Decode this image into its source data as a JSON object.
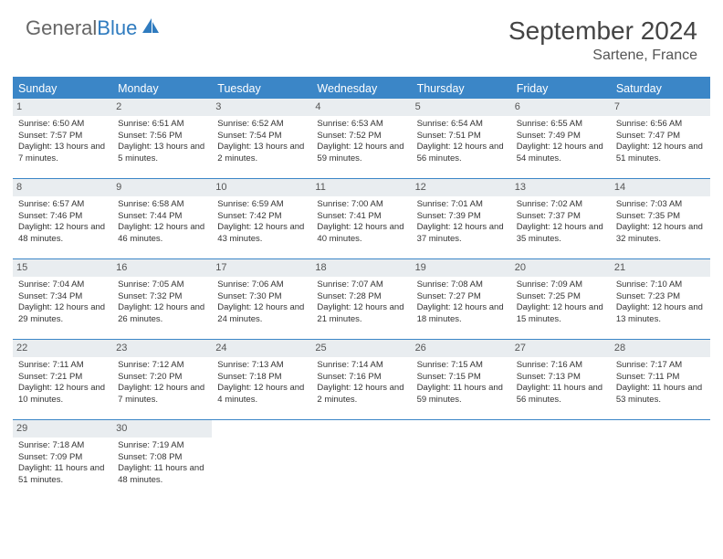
{
  "brand": {
    "part1": "General",
    "part2": "Blue"
  },
  "title": "September 2024",
  "location": "Sartene, France",
  "weekday_bg": "#3b86c7",
  "daynum_bg": "#e9edf0",
  "weekdays": [
    "Sunday",
    "Monday",
    "Tuesday",
    "Wednesday",
    "Thursday",
    "Friday",
    "Saturday"
  ],
  "weeks": [
    [
      {
        "n": "1",
        "sr": "Sunrise: 6:50 AM",
        "ss": "Sunset: 7:57 PM",
        "dl": "Daylight: 13 hours and 7 minutes."
      },
      {
        "n": "2",
        "sr": "Sunrise: 6:51 AM",
        "ss": "Sunset: 7:56 PM",
        "dl": "Daylight: 13 hours and 5 minutes."
      },
      {
        "n": "3",
        "sr": "Sunrise: 6:52 AM",
        "ss": "Sunset: 7:54 PM",
        "dl": "Daylight: 13 hours and 2 minutes."
      },
      {
        "n": "4",
        "sr": "Sunrise: 6:53 AM",
        "ss": "Sunset: 7:52 PM",
        "dl": "Daylight: 12 hours and 59 minutes."
      },
      {
        "n": "5",
        "sr": "Sunrise: 6:54 AM",
        "ss": "Sunset: 7:51 PM",
        "dl": "Daylight: 12 hours and 56 minutes."
      },
      {
        "n": "6",
        "sr": "Sunrise: 6:55 AM",
        "ss": "Sunset: 7:49 PM",
        "dl": "Daylight: 12 hours and 54 minutes."
      },
      {
        "n": "7",
        "sr": "Sunrise: 6:56 AM",
        "ss": "Sunset: 7:47 PM",
        "dl": "Daylight: 12 hours and 51 minutes."
      }
    ],
    [
      {
        "n": "8",
        "sr": "Sunrise: 6:57 AM",
        "ss": "Sunset: 7:46 PM",
        "dl": "Daylight: 12 hours and 48 minutes."
      },
      {
        "n": "9",
        "sr": "Sunrise: 6:58 AM",
        "ss": "Sunset: 7:44 PM",
        "dl": "Daylight: 12 hours and 46 minutes."
      },
      {
        "n": "10",
        "sr": "Sunrise: 6:59 AM",
        "ss": "Sunset: 7:42 PM",
        "dl": "Daylight: 12 hours and 43 minutes."
      },
      {
        "n": "11",
        "sr": "Sunrise: 7:00 AM",
        "ss": "Sunset: 7:41 PM",
        "dl": "Daylight: 12 hours and 40 minutes."
      },
      {
        "n": "12",
        "sr": "Sunrise: 7:01 AM",
        "ss": "Sunset: 7:39 PM",
        "dl": "Daylight: 12 hours and 37 minutes."
      },
      {
        "n": "13",
        "sr": "Sunrise: 7:02 AM",
        "ss": "Sunset: 7:37 PM",
        "dl": "Daylight: 12 hours and 35 minutes."
      },
      {
        "n": "14",
        "sr": "Sunrise: 7:03 AM",
        "ss": "Sunset: 7:35 PM",
        "dl": "Daylight: 12 hours and 32 minutes."
      }
    ],
    [
      {
        "n": "15",
        "sr": "Sunrise: 7:04 AM",
        "ss": "Sunset: 7:34 PM",
        "dl": "Daylight: 12 hours and 29 minutes."
      },
      {
        "n": "16",
        "sr": "Sunrise: 7:05 AM",
        "ss": "Sunset: 7:32 PM",
        "dl": "Daylight: 12 hours and 26 minutes."
      },
      {
        "n": "17",
        "sr": "Sunrise: 7:06 AM",
        "ss": "Sunset: 7:30 PM",
        "dl": "Daylight: 12 hours and 24 minutes."
      },
      {
        "n": "18",
        "sr": "Sunrise: 7:07 AM",
        "ss": "Sunset: 7:28 PM",
        "dl": "Daylight: 12 hours and 21 minutes."
      },
      {
        "n": "19",
        "sr": "Sunrise: 7:08 AM",
        "ss": "Sunset: 7:27 PM",
        "dl": "Daylight: 12 hours and 18 minutes."
      },
      {
        "n": "20",
        "sr": "Sunrise: 7:09 AM",
        "ss": "Sunset: 7:25 PM",
        "dl": "Daylight: 12 hours and 15 minutes."
      },
      {
        "n": "21",
        "sr": "Sunrise: 7:10 AM",
        "ss": "Sunset: 7:23 PM",
        "dl": "Daylight: 12 hours and 13 minutes."
      }
    ],
    [
      {
        "n": "22",
        "sr": "Sunrise: 7:11 AM",
        "ss": "Sunset: 7:21 PM",
        "dl": "Daylight: 12 hours and 10 minutes."
      },
      {
        "n": "23",
        "sr": "Sunrise: 7:12 AM",
        "ss": "Sunset: 7:20 PM",
        "dl": "Daylight: 12 hours and 7 minutes."
      },
      {
        "n": "24",
        "sr": "Sunrise: 7:13 AM",
        "ss": "Sunset: 7:18 PM",
        "dl": "Daylight: 12 hours and 4 minutes."
      },
      {
        "n": "25",
        "sr": "Sunrise: 7:14 AM",
        "ss": "Sunset: 7:16 PM",
        "dl": "Daylight: 12 hours and 2 minutes."
      },
      {
        "n": "26",
        "sr": "Sunrise: 7:15 AM",
        "ss": "Sunset: 7:15 PM",
        "dl": "Daylight: 11 hours and 59 minutes."
      },
      {
        "n": "27",
        "sr": "Sunrise: 7:16 AM",
        "ss": "Sunset: 7:13 PM",
        "dl": "Daylight: 11 hours and 56 minutes."
      },
      {
        "n": "28",
        "sr": "Sunrise: 7:17 AM",
        "ss": "Sunset: 7:11 PM",
        "dl": "Daylight: 11 hours and 53 minutes."
      }
    ],
    [
      {
        "n": "29",
        "sr": "Sunrise: 7:18 AM",
        "ss": "Sunset: 7:09 PM",
        "dl": "Daylight: 11 hours and 51 minutes."
      },
      {
        "n": "30",
        "sr": "Sunrise: 7:19 AM",
        "ss": "Sunset: 7:08 PM",
        "dl": "Daylight: 11 hours and 48 minutes."
      },
      null,
      null,
      null,
      null,
      null
    ]
  ]
}
